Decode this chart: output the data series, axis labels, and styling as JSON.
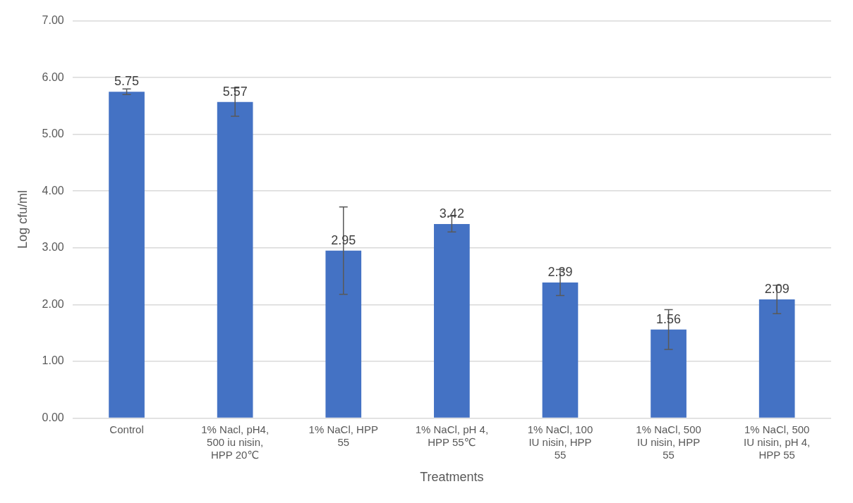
{
  "chart_data": {
    "type": "bar",
    "xlabel": "Treatments",
    "ylabel": "Log cfu/ml",
    "categories": [
      "Control",
      "1% Nacl, pH4, 500 iu nisin, HPP 20℃",
      "1% NaCl, HPP 55",
      "1% NaCl, pH 4, HPP 55℃",
      "1% NaCl, 100 IU nisin, HPP 55",
      "1% NaCl, 500 IU nisin, HPP 55",
      "1% NaCl, 500 IU nisin, pH 4, HPP 55"
    ],
    "values": [
      5.75,
      5.57,
      2.95,
      3.42,
      2.39,
      1.56,
      2.09
    ],
    "errors": [
      0.05,
      0.25,
      0.77,
      0.14,
      0.23,
      0.35,
      0.25
    ],
    "color": "#4472c4",
    "data_labels": true,
    "ylim": [
      0,
      7
    ],
    "yticks": [
      {
        "value": 0,
        "label": "0.00"
      },
      {
        "value": 1,
        "label": "1.00"
      },
      {
        "value": 2,
        "label": "2.00"
      },
      {
        "value": 3,
        "label": "3.00"
      },
      {
        "value": 4,
        "label": "4.00"
      },
      {
        "value": 5,
        "label": "5.00"
      },
      {
        "value": 6,
        "label": "6.00"
      },
      {
        "value": 7,
        "label": "7.00"
      }
    ],
    "grid": "y",
    "legend": false
  }
}
